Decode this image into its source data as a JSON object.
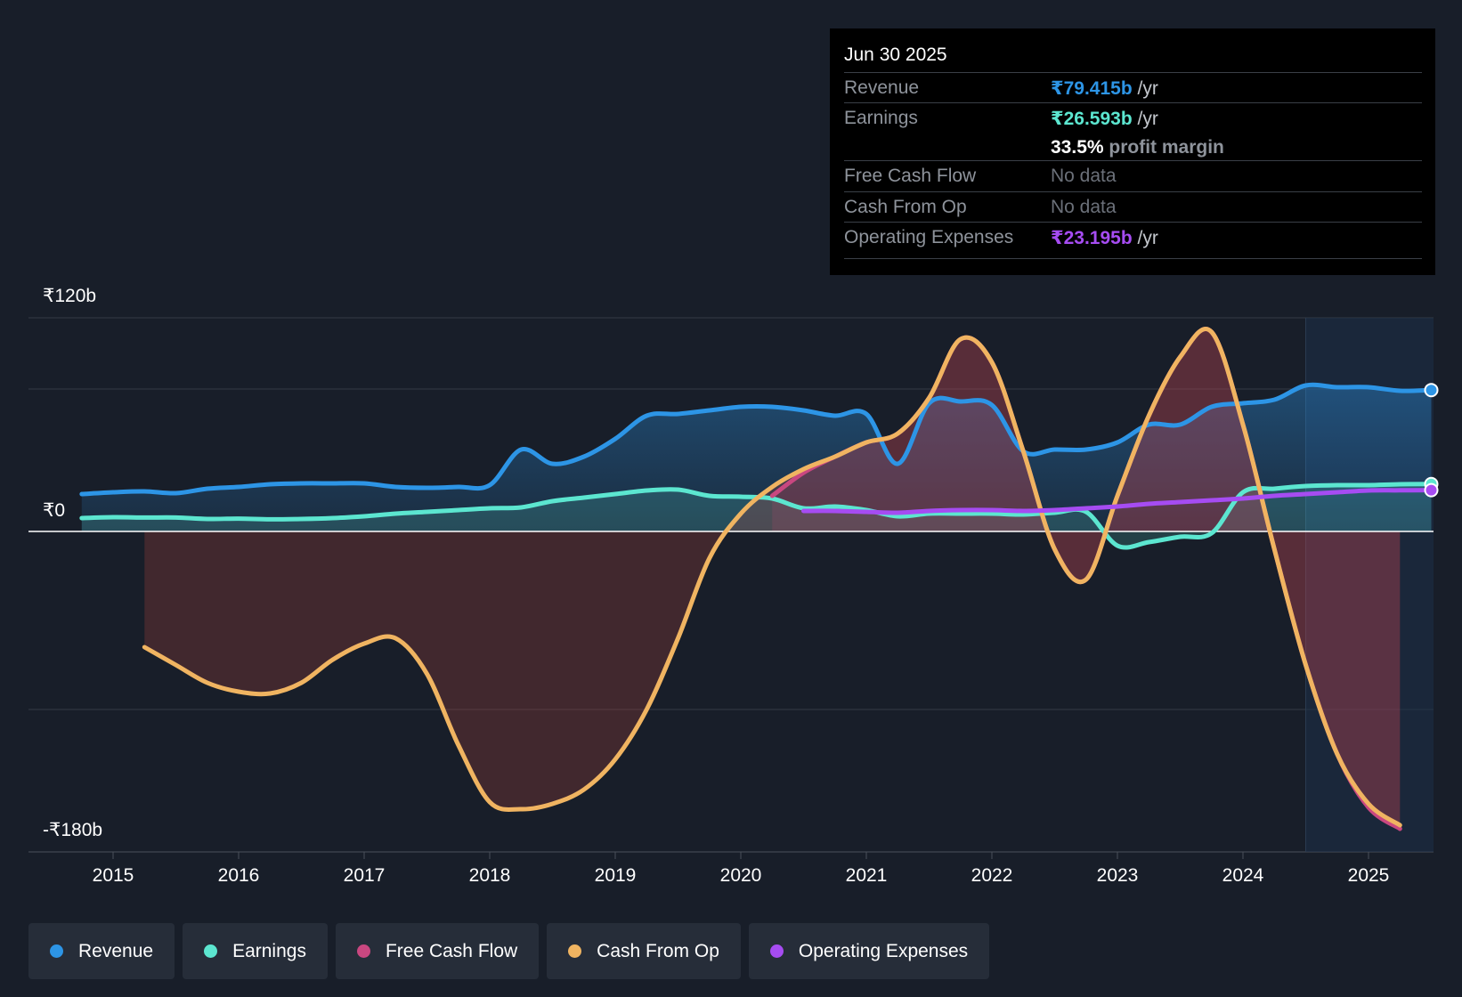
{
  "colors": {
    "revenue": "#2d95e6",
    "earnings": "#5ce6d0",
    "fcf": "#c94780",
    "cfo": "#f0b461",
    "opex": "#a64cf2",
    "grid": "#343a45",
    "zero_line": "#ffffff"
  },
  "tooltip": {
    "date": "Jun 30 2025",
    "revenue_label": "Revenue",
    "revenue_value": "₹79.415b",
    "revenue_unit": "/yr",
    "earnings_label": "Earnings",
    "earnings_value": "₹26.593b",
    "earnings_unit": "/yr",
    "margin_value": "33.5%",
    "margin_label": "profit margin",
    "fcf_label": "Free Cash Flow",
    "fcf_value": "No data",
    "cfo_label": "Cash From Op",
    "cfo_value": "No data",
    "opex_label": "Operating Expenses",
    "opex_value": "₹23.195b",
    "opex_unit": "/yr"
  },
  "legend": [
    {
      "label": "Revenue",
      "color_key": "revenue"
    },
    {
      "label": "Earnings",
      "color_key": "earnings"
    },
    {
      "label": "Free Cash Flow",
      "color_key": "fcf"
    },
    {
      "label": "Cash From Op",
      "color_key": "cfo"
    },
    {
      "label": "Operating Expenses",
      "color_key": "opex"
    }
  ],
  "chart_data": {
    "type": "line",
    "title": "",
    "xlabel": "",
    "ylabel": "",
    "xlim": [
      2014.5,
      2025.5
    ],
    "ylim": [
      -180,
      120
    ],
    "y_tick_labels": [
      {
        "value": 120,
        "label": "₹120b"
      },
      {
        "value": 0,
        "label": "₹0"
      },
      {
        "value": -180,
        "label": "-₹180b"
      }
    ],
    "x_ticks": [
      2015,
      2016,
      2017,
      2018,
      2019,
      2020,
      2021,
      2022,
      2023,
      2024,
      2025
    ],
    "x_tick_labels": [
      "2015",
      "2016",
      "2017",
      "2018",
      "2019",
      "2020",
      "2021",
      "2022",
      "2023",
      "2024",
      "2025"
    ],
    "forecast_start": 2024.5,
    "series": [
      {
        "name": "Revenue",
        "color_key": "revenue",
        "fill": true,
        "points": [
          [
            2014.75,
            21
          ],
          [
            2015,
            22
          ],
          [
            2015.25,
            22.5
          ],
          [
            2015.5,
            21.5
          ],
          [
            2015.75,
            24
          ],
          [
            2016,
            25
          ],
          [
            2016.25,
            26.5
          ],
          [
            2016.5,
            27
          ],
          [
            2016.75,
            27
          ],
          [
            2017,
            27
          ],
          [
            2017.25,
            25
          ],
          [
            2017.5,
            24.5
          ],
          [
            2017.75,
            25
          ],
          [
            2018,
            26
          ],
          [
            2018.25,
            46
          ],
          [
            2018.5,
            38
          ],
          [
            2018.75,
            42
          ],
          [
            2019,
            52
          ],
          [
            2019.25,
            65
          ],
          [
            2019.5,
            66
          ],
          [
            2019.75,
            68
          ],
          [
            2020,
            70
          ],
          [
            2020.25,
            70
          ],
          [
            2020.5,
            68
          ],
          [
            2020.75,
            65
          ],
          [
            2021,
            66
          ],
          [
            2021.25,
            38
          ],
          [
            2021.5,
            72
          ],
          [
            2021.75,
            73
          ],
          [
            2022,
            71
          ],
          [
            2022.25,
            45
          ],
          [
            2022.5,
            46
          ],
          [
            2022.75,
            46
          ],
          [
            2023,
            50
          ],
          [
            2023.25,
            60
          ],
          [
            2023.5,
            60
          ],
          [
            2023.75,
            70
          ],
          [
            2024,
            72
          ],
          [
            2024.25,
            74
          ],
          [
            2024.5,
            82
          ],
          [
            2024.75,
            81
          ],
          [
            2025,
            81
          ],
          [
            2025.25,
            79
          ],
          [
            2025.5,
            79.4
          ]
        ]
      },
      {
        "name": "Earnings",
        "color_key": "earnings",
        "fill": true,
        "points": [
          [
            2014.75,
            7.5
          ],
          [
            2015,
            8
          ],
          [
            2015.25,
            7.8
          ],
          [
            2015.5,
            7.8
          ],
          [
            2015.75,
            7
          ],
          [
            2016,
            7.2
          ],
          [
            2016.25,
            6.8
          ],
          [
            2016.5,
            7
          ],
          [
            2016.75,
            7.5
          ],
          [
            2017,
            8.5
          ],
          [
            2017.25,
            10
          ],
          [
            2017.5,
            11
          ],
          [
            2017.75,
            12
          ],
          [
            2018,
            13
          ],
          [
            2018.25,
            13.5
          ],
          [
            2018.5,
            17
          ],
          [
            2018.75,
            19
          ],
          [
            2019,
            21
          ],
          [
            2019.25,
            23
          ],
          [
            2019.5,
            23.5
          ],
          [
            2019.75,
            20
          ],
          [
            2020,
            19.5
          ],
          [
            2020.25,
            18.5
          ],
          [
            2020.5,
            13
          ],
          [
            2020.75,
            14
          ],
          [
            2021,
            12
          ],
          [
            2021.25,
            8.5
          ],
          [
            2021.5,
            10
          ],
          [
            2021.75,
            10
          ],
          [
            2022,
            10
          ],
          [
            2022.25,
            9.5
          ],
          [
            2022.5,
            10.5
          ],
          [
            2022.75,
            11
          ],
          [
            2023,
            -8
          ],
          [
            2023.25,
            -6
          ],
          [
            2023.5,
            -3
          ],
          [
            2023.75,
            -1
          ],
          [
            2024,
            22
          ],
          [
            2024.25,
            24
          ],
          [
            2024.5,
            25.5
          ],
          [
            2024.75,
            26
          ],
          [
            2025,
            26
          ],
          [
            2025.25,
            26.5
          ],
          [
            2025.5,
            26.6
          ]
        ]
      },
      {
        "name": "Free Cash Flow",
        "color_key": "fcf",
        "fill": true,
        "points": [
          [
            2020.25,
            20
          ],
          [
            2020.5,
            33
          ],
          [
            2020.75,
            42
          ],
          [
            2021,
            50
          ],
          [
            2021.25,
            55
          ],
          [
            2021.5,
            75
          ],
          [
            2021.75,
            108
          ],
          [
            2022,
            95
          ],
          [
            2022.25,
            45
          ],
          [
            2022.5,
            -10
          ],
          [
            2022.75,
            -27
          ],
          [
            2023,
            20
          ],
          [
            2023.25,
            65
          ],
          [
            2023.5,
            98
          ],
          [
            2023.75,
            112
          ],
          [
            2024,
            60
          ],
          [
            2024.25,
            -10
          ],
          [
            2024.5,
            -75
          ],
          [
            2024.75,
            -125
          ],
          [
            2025,
            -155
          ],
          [
            2025.25,
            -167
          ]
        ]
      },
      {
        "name": "Cash From Op",
        "color_key": "cfo",
        "fill": true,
        "points": [
          [
            2015.25,
            -65
          ],
          [
            2015.5,
            -75
          ],
          [
            2015.75,
            -85
          ],
          [
            2016,
            -90
          ],
          [
            2016.25,
            -91
          ],
          [
            2016.5,
            -85
          ],
          [
            2016.75,
            -72
          ],
          [
            2017,
            -63
          ],
          [
            2017.25,
            -60
          ],
          [
            2017.5,
            -80
          ],
          [
            2017.75,
            -120
          ],
          [
            2018,
            -152
          ],
          [
            2018.25,
            -156
          ],
          [
            2018.5,
            -153
          ],
          [
            2018.75,
            -145
          ],
          [
            2019,
            -128
          ],
          [
            2019.25,
            -100
          ],
          [
            2019.5,
            -60
          ],
          [
            2019.75,
            -15
          ],
          [
            2020,
            10
          ],
          [
            2020.25,
            25
          ],
          [
            2020.5,
            35
          ],
          [
            2020.75,
            42
          ],
          [
            2021,
            50
          ],
          [
            2021.25,
            55
          ],
          [
            2021.5,
            75
          ],
          [
            2021.75,
            108
          ],
          [
            2022,
            95
          ],
          [
            2022.25,
            45
          ],
          [
            2022.5,
            -10
          ],
          [
            2022.75,
            -27
          ],
          [
            2023,
            20
          ],
          [
            2023.25,
            65
          ],
          [
            2023.5,
            98
          ],
          [
            2023.75,
            112
          ],
          [
            2024,
            60
          ],
          [
            2024.25,
            -10
          ],
          [
            2024.5,
            -75
          ],
          [
            2024.75,
            -125
          ],
          [
            2025,
            -153
          ],
          [
            2025.25,
            -165
          ]
        ]
      },
      {
        "name": "Operating Expenses",
        "color_key": "opex",
        "fill": false,
        "points": [
          [
            2020.5,
            11.5
          ],
          [
            2020.75,
            11.5
          ],
          [
            2021,
            11
          ],
          [
            2021.25,
            10.5
          ],
          [
            2021.5,
            11.5
          ],
          [
            2021.75,
            12
          ],
          [
            2022,
            12
          ],
          [
            2022.25,
            11.5
          ],
          [
            2022.5,
            12
          ],
          [
            2022.75,
            13
          ],
          [
            2023,
            14
          ],
          [
            2023.25,
            15.5
          ],
          [
            2023.5,
            16.5
          ],
          [
            2023.75,
            17.5
          ],
          [
            2024,
            18.5
          ],
          [
            2024.25,
            20
          ],
          [
            2024.5,
            21
          ],
          [
            2024.75,
            22
          ],
          [
            2025,
            23
          ],
          [
            2025.25,
            23.1
          ],
          [
            2025.5,
            23.2
          ]
        ]
      }
    ]
  }
}
